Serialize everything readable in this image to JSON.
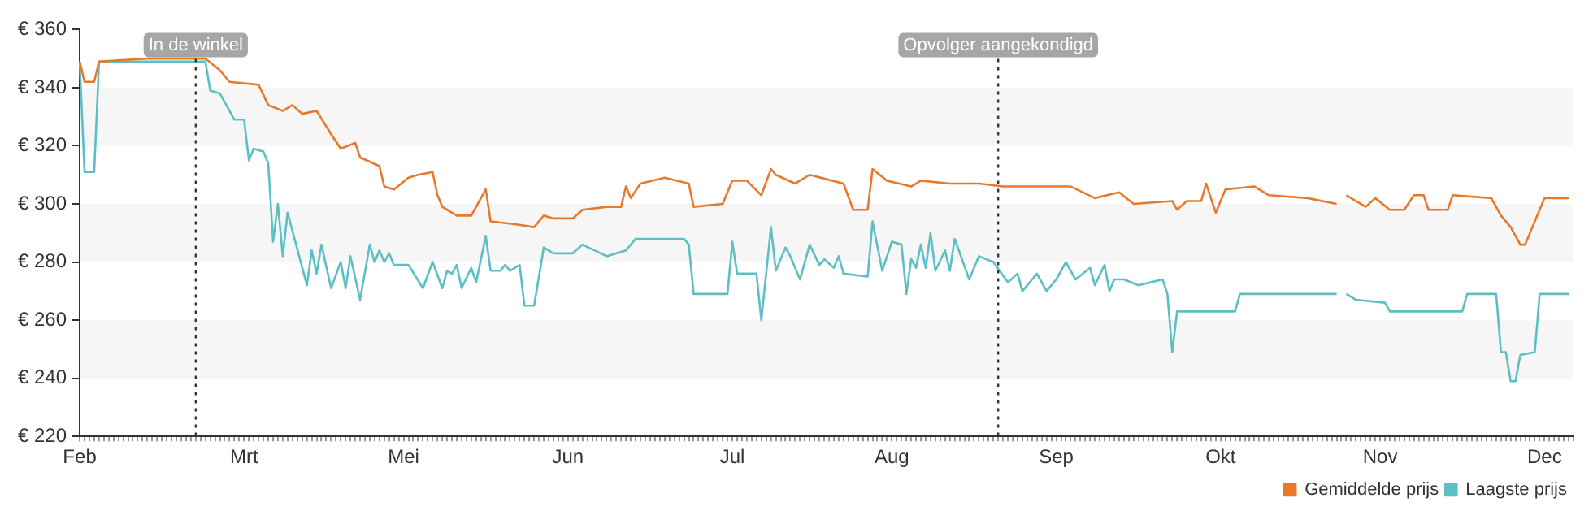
{
  "chart_data": {
    "type": "line",
    "categories": [
      "Feb",
      null,
      null,
      null,
      null,
      null,
      null,
      null,
      null,
      null,
      null,
      null,
      null,
      null,
      null,
      null,
      null,
      null,
      null,
      null,
      null,
      null,
      null,
      null,
      null,
      null,
      null,
      null,
      null,
      null,
      null,
      null,
      null,
      null,
      "Mrt",
      null,
      null,
      null,
      null,
      null,
      null,
      null,
      null,
      null,
      null,
      null,
      null,
      null,
      null,
      null,
      null,
      null,
      null,
      null,
      null,
      null,
      null,
      null,
      null,
      null,
      null,
      null,
      null,
      null,
      null,
      null,
      null,
      "Mei",
      null,
      null,
      null,
      null,
      null,
      null,
      null,
      null,
      null,
      null,
      null,
      null,
      null,
      null,
      null,
      null,
      null,
      null,
      null,
      null,
      null,
      null,
      null,
      null,
      null,
      null,
      null,
      null,
      null,
      null,
      null,
      null,
      null,
      "Jun",
      null,
      null,
      null,
      null,
      null,
      null,
      null,
      null,
      null,
      null,
      null,
      null,
      null,
      null,
      null,
      null,
      null,
      null,
      null,
      null,
      null,
      null,
      null,
      null,
      null,
      null,
      null,
      null,
      null,
      null,
      null,
      null,
      null,
      "Jul",
      null,
      null,
      null,
      null,
      null,
      null,
      null,
      null,
      null,
      null,
      null,
      null,
      null,
      null,
      null,
      null,
      null,
      null,
      null,
      null,
      null,
      null,
      null,
      null,
      null,
      null,
      null,
      null,
      null,
      null,
      null,
      null,
      "Aug",
      null,
      null,
      null,
      null,
      null,
      null,
      null,
      null,
      null,
      null,
      null,
      null,
      null,
      null,
      null,
      null,
      null,
      null,
      null,
      null,
      null,
      null,
      null,
      null,
      null,
      null,
      null,
      null,
      null,
      null,
      null,
      null,
      null,
      "Sep",
      null,
      null,
      null,
      null,
      null,
      null,
      null,
      null,
      null,
      null,
      null,
      null,
      null,
      null,
      null,
      null,
      null,
      null,
      null,
      null,
      null,
      null,
      null,
      null,
      null,
      null,
      null,
      null,
      null,
      null,
      null,
      null,
      null,
      "Okt",
      null,
      null,
      null,
      null,
      null,
      null,
      null,
      null,
      null,
      null,
      null,
      null,
      null,
      null,
      null,
      null,
      null,
      null,
      null,
      null,
      null,
      null,
      null,
      null,
      null,
      null,
      null,
      null,
      null,
      null,
      null,
      null,
      "Nov",
      null,
      null,
      null,
      null,
      null,
      null,
      null,
      null,
      null,
      null,
      null,
      null,
      null,
      null,
      null,
      null,
      null,
      null,
      null,
      null,
      null,
      null,
      null,
      null,
      null,
      null,
      null,
      null,
      null,
      null,
      null,
      null,
      null,
      "Dec",
      null,
      null,
      null,
      null,
      null,
      null
    ],
    "series": [
      {
        "name": "Gemiddelde prijs",
        "color": "#e8792a",
        "values": [
          349,
          342,
          null,
          342,
          349,
          null,
          null,
          null,
          null,
          null,
          null,
          null,
          null,
          null,
          350,
          null,
          null,
          null,
          null,
          null,
          null,
          null,
          null,
          null,
          null,
          null,
          350,
          null,
          null,
          346,
          null,
          342,
          null,
          null,
          null,
          null,
          null,
          341,
          null,
          334,
          null,
          null,
          332,
          null,
          334,
          null,
          331,
          null,
          null,
          332,
          null,
          null,
          324,
          null,
          319,
          null,
          null,
          321,
          316,
          null,
          null,
          null,
          313,
          306,
          null,
          305,
          null,
          null,
          309,
          null,
          310,
          null,
          null,
          311,
          303,
          299,
          null,
          null,
          296,
          null,
          null,
          296,
          null,
          null,
          305,
          294,
          null,
          null,
          null,
          null,
          293,
          null,
          null,
          null,
          292,
          null,
          296,
          null,
          295,
          null,
          null,
          null,
          295,
          null,
          298,
          null,
          null,
          null,
          null,
          299,
          null,
          null,
          299,
          306,
          302,
          null,
          307,
          null,
          null,
          null,
          null,
          309,
          null,
          null,
          null,
          null,
          307,
          299,
          null,
          null,
          null,
          null,
          null,
          300,
          null,
          308,
          null,
          null,
          308,
          null,
          null,
          303,
          null,
          312,
          310,
          null,
          null,
          null,
          307,
          null,
          null,
          310,
          null,
          null,
          null,
          null,
          null,
          null,
          307,
          null,
          298,
          null,
          null,
          298,
          312,
          null,
          null,
          308,
          null,
          null,
          null,
          null,
          306,
          null,
          308,
          null,
          null,
          null,
          null,
          null,
          307,
          null,
          null,
          null,
          null,
          null,
          307,
          null,
          null,
          null,
          null,
          306,
          null,
          null,
          null,
          null,
          null,
          null,
          306,
          null,
          null,
          null,
          null,
          null,
          null,
          306,
          null,
          null,
          null,
          null,
          302,
          null,
          null,
          null,
          null,
          304,
          null,
          null,
          300,
          null,
          null,
          null,
          null,
          null,
          null,
          null,
          301,
          298,
          null,
          301,
          null,
          null,
          301,
          307,
          null,
          297,
          null,
          305,
          null,
          null,
          null,
          null,
          null,
          306,
          null,
          null,
          303,
          null,
          null,
          null,
          null,
          null,
          null,
          null,
          302,
          null,
          null,
          null,
          null,
          null,
          300,
          null,
          null,
          null,
          null,
          null,
          null,
          null,
          null,
          null,
          null,
          null,
          null,
          null,
          null,
          null,
          null,
          null,
          null,
          null,
          null,
          null,
          null,
          null,
          null,
          null,
          null,
          null,
          null,
          null,
          null,
          null,
          null,
          null,
          null,
          null,
          null,
          null,
          null,
          null,
          null,
          null,
          null,
          null,
          null,
          null,
          null,
          null,
          null,
          null
        ]
      },
      {
        "color": "#e8792a",
        "values": [
          null,
          null,
          null,
          null,
          null,
          null,
          null,
          null,
          null,
          null,
          null,
          null,
          null,
          null,
          null,
          null,
          null,
          null,
          null,
          null,
          null,
          null,
          null,
          null,
          null,
          null,
          null,
          null,
          null,
          null,
          null,
          null,
          null,
          null,
          null,
          null,
          null,
          null,
          null,
          null,
          null,
          null,
          null,
          null,
          null,
          null,
          null,
          null,
          null,
          null,
          null,
          null,
          null,
          null,
          null,
          null,
          null,
          null,
          null,
          null,
          null,
          null,
          null,
          null,
          null,
          null,
          null,
          null,
          null,
          null,
          null,
          null,
          null,
          null,
          null,
          null,
          null,
          null,
          null,
          null,
          null,
          null,
          null,
          null,
          null,
          null,
          null,
          null,
          null,
          null,
          null,
          null,
          null,
          null,
          null,
          null,
          null,
          null,
          null,
          null,
          null,
          null,
          null,
          null,
          null,
          null,
          null,
          null,
          null,
          null,
          null,
          null,
          null,
          null,
          null,
          null,
          null,
          null,
          null,
          null,
          null,
          null,
          null,
          null,
          null,
          null,
          null,
          null,
          null,
          null,
          null,
          null,
          null,
          null,
          null,
          null,
          null,
          null,
          null,
          null,
          null,
          null,
          null,
          null,
          null,
          null,
          null,
          null,
          null,
          null,
          null,
          null,
          null,
          null,
          null,
          null,
          null,
          null,
          null,
          null,
          null,
          null,
          null,
          null,
          null,
          null,
          null,
          null,
          null,
          null,
          null,
          null,
          null,
          null,
          null,
          null,
          null,
          null,
          null,
          null,
          null,
          null,
          null,
          null,
          null,
          null,
          null,
          null,
          null,
          null,
          null,
          null,
          null,
          null,
          null,
          null,
          null,
          null,
          null,
          null,
          null,
          null,
          null,
          null,
          null,
          null,
          null,
          null,
          null,
          null,
          null,
          null,
          null,
          null,
          null,
          null,
          null,
          null,
          null,
          null,
          null,
          null,
          null,
          null,
          null,
          null,
          null,
          null,
          null,
          null,
          null,
          null,
          null,
          null,
          null,
          null,
          null,
          null,
          null,
          null,
          null,
          null,
          null,
          null,
          null,
          null,
          null,
          null,
          null,
          null,
          null,
          null,
          null,
          null,
          null,
          null,
          null,
          null,
          null,
          null,
          null,
          null,
          303,
          null,
          null,
          null,
          299,
          null,
          302,
          null,
          null,
          298,
          null,
          null,
          298,
          null,
          303,
          null,
          303,
          298,
          null,
          null,
          null,
          298,
          303,
          null,
          null,
          null,
          null,
          null,
          null,
          null,
          302,
          null,
          296,
          null,
          292,
          null,
          286,
          286,
          null,
          null,
          null,
          302,
          null,
          null,
          null,
          null,
          302,
          null
        ]
      },
      {
        "name": "Laagste prijs",
        "color": "#5bbfc4",
        "values": [
          349,
          311,
          null,
          311,
          349,
          null,
          null,
          null,
          null,
          null,
          null,
          null,
          null,
          null,
          null,
          null,
          null,
          null,
          null,
          null,
          null,
          null,
          null,
          null,
          null,
          null,
          349,
          339,
          null,
          338,
          335,
          null,
          329,
          null,
          329,
          315,
          319,
          null,
          318,
          314,
          287,
          300,
          282,
          297,
          null,
          null,
          null,
          272,
          284,
          276,
          286,
          null,
          271,
          null,
          280,
          271,
          282,
          null,
          267,
          null,
          286,
          280,
          284,
          280,
          283,
          279,
          null,
          null,
          279,
          null,
          null,
          271,
          null,
          280,
          null,
          271,
          277,
          276,
          279,
          271,
          null,
          278,
          273,
          null,
          289,
          277,
          null,
          277,
          279,
          277,
          null,
          279,
          265,
          null,
          265,
          null,
          285,
          null,
          283,
          null,
          null,
          null,
          283,
          null,
          286,
          null,
          null,
          null,
          null,
          282,
          null,
          null,
          null,
          284,
          null,
          288,
          null,
          null,
          null,
          null,
          null,
          null,
          null,
          null,
          null,
          288,
          286,
          269,
          null,
          null,
          null,
          null,
          null,
          null,
          269,
          287,
          276,
          null,
          null,
          null,
          276,
          260,
          null,
          292,
          277,
          null,
          285,
          282,
          null,
          274,
          null,
          286,
          null,
          279,
          281,
          null,
          278,
          282,
          276,
          null,
          null,
          null,
          null,
          275,
          294,
          null,
          277,
          null,
          287,
          null,
          286,
          269,
          281,
          278,
          286,
          278,
          290,
          277,
          null,
          284,
          277,
          288,
          null,
          null,
          274,
          null,
          282,
          null,
          null,
          280,
          null,
          null,
          273,
          null,
          276,
          270,
          null,
          null,
          276,
          null,
          270,
          null,
          274,
          null,
          280,
          null,
          274,
          null,
          null,
          278,
          272,
          null,
          279,
          270,
          274,
          null,
          274,
          null,
          null,
          272,
          null,
          null,
          null,
          null,
          274,
          269,
          249,
          263,
          null,
          null,
          null,
          null,
          null,
          null,
          null,
          null,
          null,
          null,
          null,
          263,
          269,
          null,
          null,
          null,
          null,
          null,
          null,
          null,
          null,
          null,
          null,
          null,
          null,
          null,
          null,
          null,
          null,
          null,
          null,
          null,
          269,
          null,
          null,
          null,
          null,
          null,
          null,
          null,
          null,
          null,
          null,
          null,
          null,
          null,
          null,
          null,
          null,
          null,
          null,
          null,
          null,
          null,
          null,
          null,
          null,
          null,
          null,
          null,
          null,
          null,
          null,
          null,
          null,
          null,
          null,
          null,
          null,
          null,
          null,
          null,
          null,
          null,
          null,
          null,
          null,
          null,
          null,
          null,
          null,
          null
        ]
      },
      {
        "color": "#5bbfc4",
        "values": [
          null,
          null,
          null,
          null,
          null,
          null,
          null,
          null,
          null,
          null,
          null,
          null,
          null,
          null,
          null,
          null,
          null,
          null,
          null,
          null,
          null,
          null,
          null,
          null,
          null,
          null,
          null,
          null,
          null,
          null,
          null,
          null,
          null,
          null,
          null,
          null,
          null,
          null,
          null,
          null,
          null,
          null,
          null,
          null,
          null,
          null,
          null,
          null,
          null,
          null,
          null,
          null,
          null,
          null,
          null,
          null,
          null,
          null,
          null,
          null,
          null,
          null,
          null,
          null,
          null,
          null,
          null,
          null,
          null,
          null,
          null,
          null,
          null,
          null,
          null,
          null,
          null,
          null,
          null,
          null,
          null,
          null,
          null,
          null,
          null,
          null,
          null,
          null,
          null,
          null,
          null,
          null,
          null,
          null,
          null,
          null,
          null,
          null,
          null,
          null,
          null,
          null,
          null,
          null,
          null,
          null,
          null,
          null,
          null,
          null,
          null,
          null,
          null,
          null,
          null,
          null,
          null,
          null,
          null,
          null,
          null,
          null,
          null,
          null,
          null,
          null,
          null,
          null,
          null,
          null,
          null,
          null,
          null,
          null,
          null,
          null,
          null,
          null,
          null,
          null,
          null,
          null,
          null,
          null,
          null,
          null,
          null,
          null,
          null,
          null,
          null,
          null,
          null,
          null,
          null,
          null,
          null,
          null,
          null,
          null,
          null,
          null,
          null,
          null,
          null,
          null,
          null,
          null,
          null,
          null,
          null,
          null,
          null,
          null,
          null,
          null,
          null,
          null,
          null,
          null,
          null,
          null,
          null,
          null,
          null,
          null,
          null,
          null,
          null,
          null,
          null,
          null,
          null,
          null,
          null,
          null,
          null,
          null,
          null,
          null,
          null,
          null,
          null,
          null,
          null,
          null,
          null,
          null,
          null,
          null,
          null,
          null,
          null,
          null,
          null,
          null,
          null,
          null,
          null,
          null,
          null,
          null,
          null,
          null,
          null,
          null,
          null,
          null,
          null,
          null,
          null,
          null,
          null,
          null,
          null,
          null,
          null,
          null,
          null,
          null,
          null,
          null,
          null,
          null,
          null,
          null,
          null,
          null,
          null,
          null,
          null,
          null,
          null,
          null,
          null,
          null,
          null,
          null,
          null,
          null,
          null,
          null,
          269,
          null,
          267,
          null,
          null,
          null,
          null,
          null,
          266,
          263,
          null,
          null,
          null,
          null,
          null,
          null,
          null,
          null,
          null,
          null,
          null,
          null,
          null,
          null,
          263,
          269,
          null,
          null,
          null,
          null,
          null,
          269,
          249,
          249,
          239,
          239,
          248,
          null,
          null,
          249,
          269,
          null,
          null,
          null,
          null,
          null,
          269,
          null
        ]
      }
    ],
    "ylim": [
      220,
      360
    ],
    "yticks": [
      {
        "value": 220,
        "label": "€ 220"
      },
      {
        "value": 240,
        "label": "€ 240"
      },
      {
        "value": 260,
        "label": "€ 260"
      },
      {
        "value": 280,
        "label": "€ 280"
      },
      {
        "value": 300,
        "label": "€ 300"
      },
      {
        "value": 320,
        "label": "€ 320"
      },
      {
        "value": 340,
        "label": "€ 340"
      },
      {
        "value": 360,
        "label": "€ 360"
      }
    ],
    "bands": [
      {
        "axis": "y",
        "from": 240,
        "to": 260,
        "color": "#f6f6f6"
      },
      {
        "axis": "y",
        "from": 280,
        "to": 300,
        "color": "#f6f6f6"
      },
      {
        "axis": "y",
        "from": 320,
        "to": 340,
        "color": "#f6f6f6"
      }
    ],
    "annotations": [
      "In de winkel",
      "Opvolger aangekondigd"
    ],
    "grid": false,
    "legend": "bottom right",
    "marker": "none",
    "line_style": "solid"
  }
}
